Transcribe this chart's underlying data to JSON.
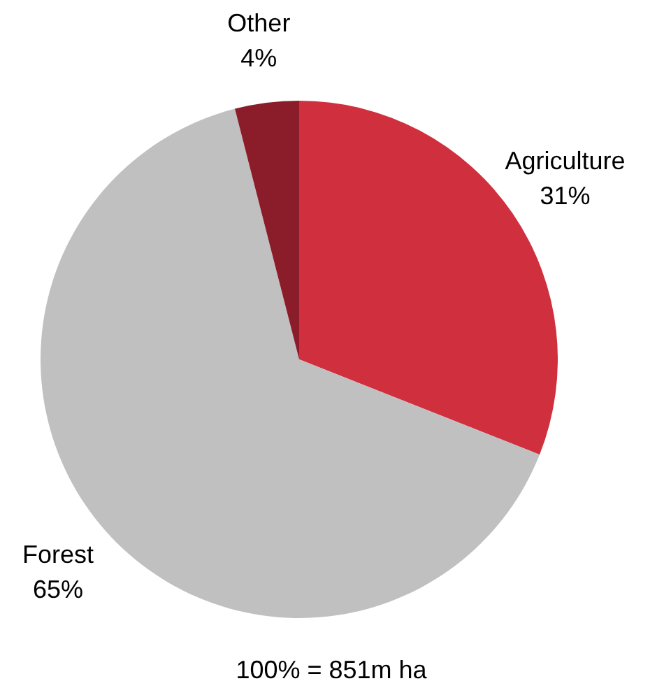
{
  "chart_data": {
    "type": "pie",
    "categories": [
      "Agriculture",
      "Forest",
      "Other"
    ],
    "values": [
      31,
      65,
      4
    ],
    "value_labels": [
      "31%",
      "65%",
      "4%"
    ],
    "colors": [
      "#d0303e",
      "#c0c0c0",
      "#8b1d2a"
    ],
    "annotations": [
      "100% = 851m ha"
    ]
  }
}
